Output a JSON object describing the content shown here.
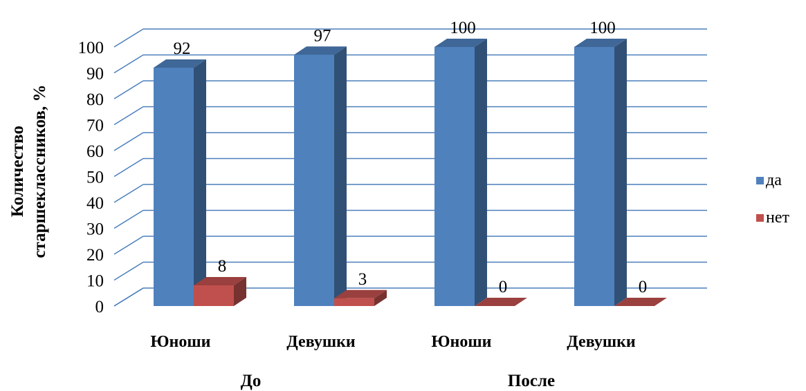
{
  "chart_data": {
    "type": "bar",
    "style": "3d-clustered-column",
    "ylabel": [
      "Количество",
      "старшеклассников, %"
    ],
    "ylim": [
      0,
      100
    ],
    "y_ticks": [
      0,
      10,
      20,
      30,
      40,
      50,
      60,
      70,
      80,
      90,
      100
    ],
    "grid": true,
    "legend": "right",
    "groups": [
      {
        "label": "До",
        "categories": [
          "Юноши",
          "Девушки"
        ]
      },
      {
        "label": "После",
        "categories": [
          "Юноши",
          "Девушки"
        ]
      }
    ],
    "categories": [
      "Юноши",
      "Девушки",
      "Юноши",
      "Девушки"
    ],
    "series": [
      {
        "name": "да",
        "color": "#4F81BD",
        "values": [
          92,
          97,
          100,
          100
        ]
      },
      {
        "name": "нет",
        "color": "#C0504D",
        "values": [
          8,
          3,
          0,
          0
        ]
      }
    ],
    "colors": {
      "grid": "#4A7EBB",
      "bar_blue": "#4F81BD",
      "bar_red": "#C0504D"
    }
  }
}
